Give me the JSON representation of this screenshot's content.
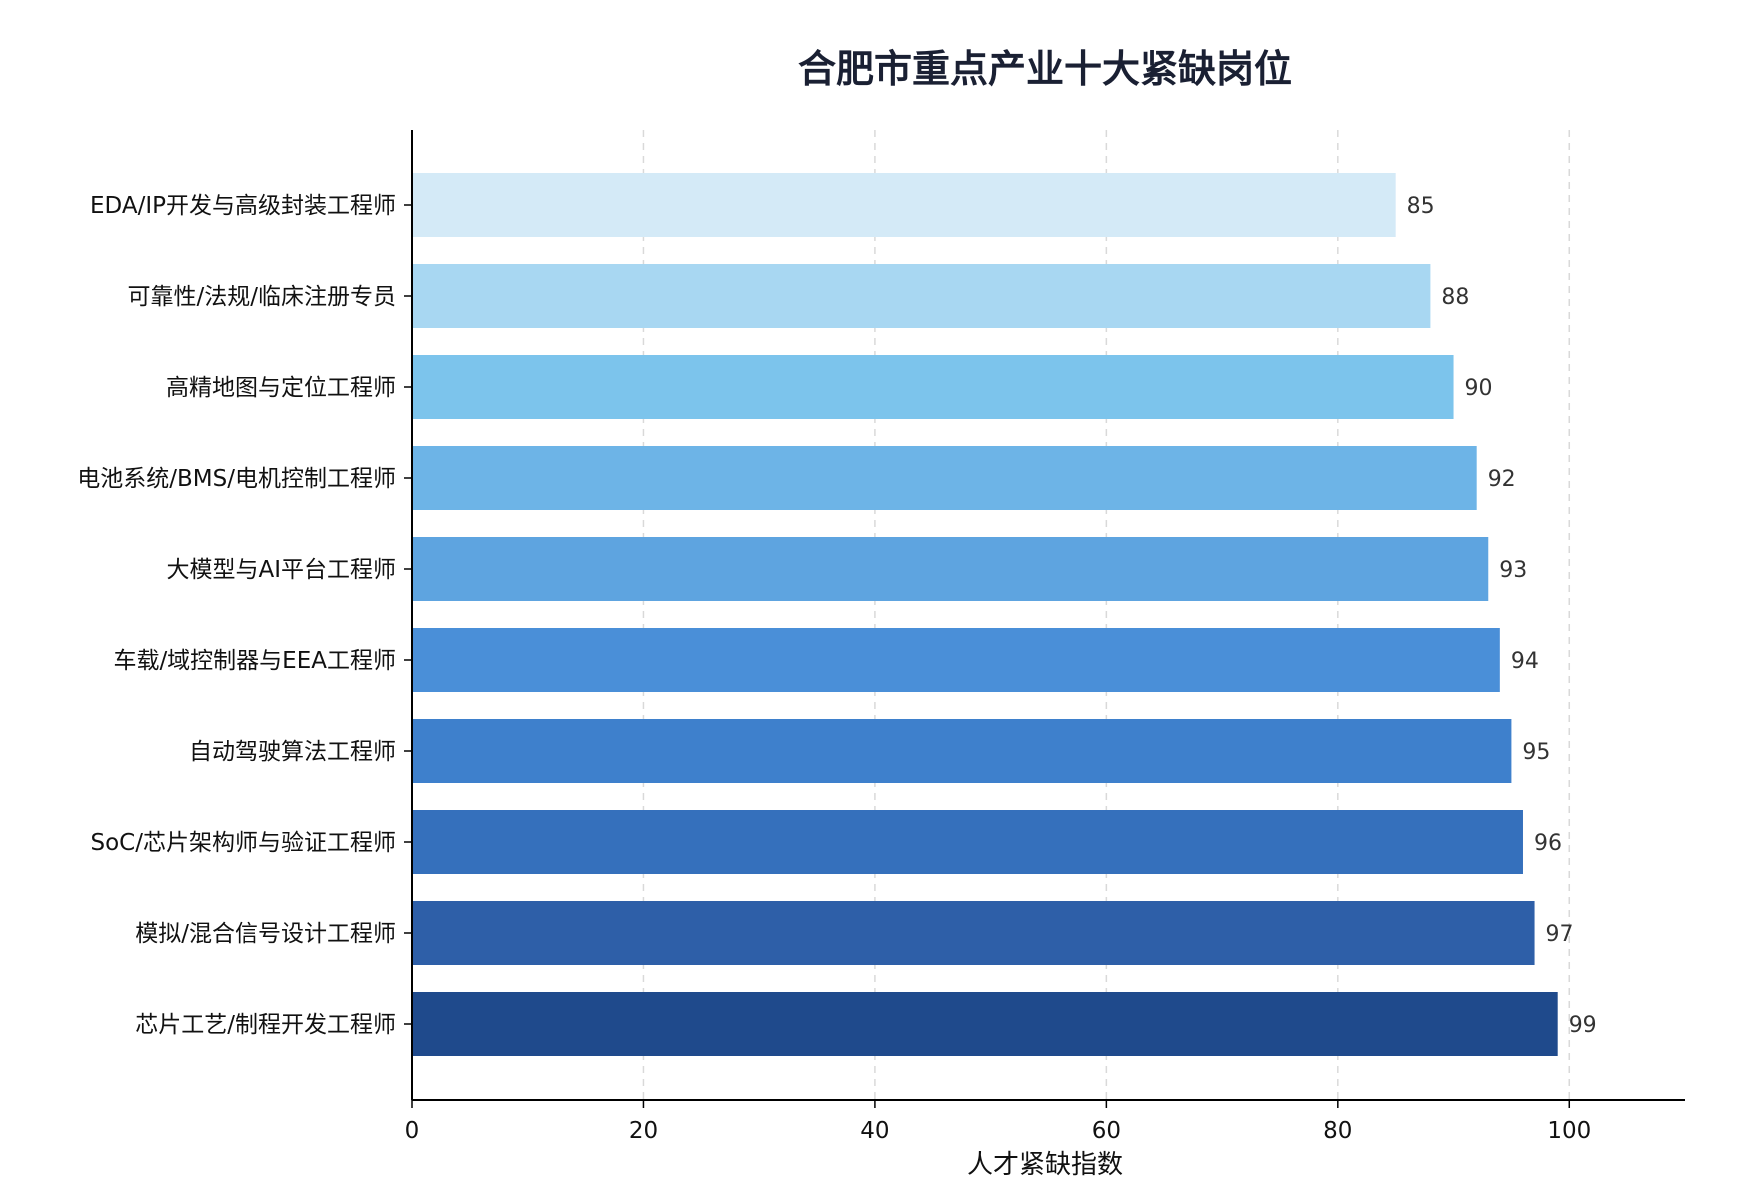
{
  "chart_data": {
    "type": "bar",
    "orientation": "horizontal",
    "title": "合肥市重点产业十大紧缺岗位",
    "xlabel": "人才紧缺指数",
    "ylabel": "",
    "xlim": [
      0,
      110
    ],
    "xticks": [
      0,
      20,
      40,
      60,
      80,
      100
    ],
    "grid": "x-dashed",
    "categories": [
      "EDA/IP开发与高级封装工程师",
      "可靠性/法规/临床注册专员",
      "高精地图与定位工程师",
      "电池系统/BMS/电机控制工程师",
      "大模型与AI平台工程师",
      "车载/域控制器与EEA工程师",
      "自动驾驶算法工程师",
      "SoC/芯片架构师与验证工程师",
      "模拟/混合信号设计工程师",
      "芯片工艺/制程开发工程师"
    ],
    "values": [
      85,
      88,
      90,
      92,
      93,
      94,
      95,
      96,
      97,
      99
    ],
    "colors": [
      "#d4eaf7",
      "#a8d7f2",
      "#7cc4ec",
      "#6db4e7",
      "#5ea4e0",
      "#4a8fd8",
      "#3e80cc",
      "#3570bc",
      "#2e5fa8",
      "#1f4a8c"
    ]
  }
}
